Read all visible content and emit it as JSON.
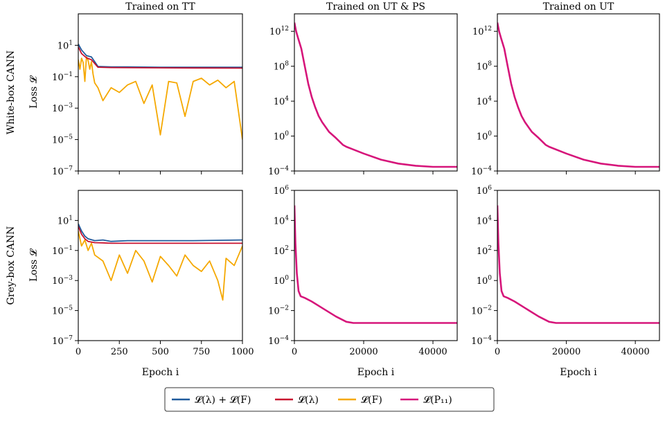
{
  "figure": {
    "columns": [
      {
        "title": "Trained on TT"
      },
      {
        "title": "Trained on UT & PS"
      },
      {
        "title": "Trained on UT"
      }
    ],
    "rows": [
      {
        "label": "White-box CANN",
        "ylabel": "Loss 𝓛"
      },
      {
        "label": "Grey-box CANN",
        "ylabel": "Loss 𝓛"
      }
    ],
    "xlabel": "Epoch i",
    "legend": {
      "placement": "bottom-center",
      "entries": [
        {
          "key": "total",
          "label": "𝓛(λ) + 𝓛(F)",
          "color": "#1f5a9c"
        },
        {
          "key": "lambda",
          "label": "𝓛(λ)",
          "color": "#c8102e"
        },
        {
          "key": "F",
          "label": "𝓛(F)",
          "color": "#f5a800"
        },
        {
          "key": "P11",
          "label": "𝓛(P₁₁)",
          "color": "#d6157a"
        }
      ]
    }
  },
  "chart_data": [
    {
      "id": "wb_tt",
      "type": "line",
      "yscale": "log",
      "xlim": [
        0,
        1000
      ],
      "ylim": [
        1e-07,
        1000
      ],
      "xticks": [
        0,
        250,
        500,
        750,
        1000
      ],
      "yticks": [
        {
          "base": "10",
          "exp": "1"
        },
        {
          "base": "10",
          "exp": "−1"
        },
        {
          "base": "10",
          "exp": "−3"
        },
        {
          "base": "10",
          "exp": "−5"
        },
        {
          "base": "10",
          "exp": "−7"
        }
      ],
      "show_xticklabels": false,
      "series": [
        {
          "name": "𝓛(λ) + 𝓛(F)",
          "color_key": "total",
          "x": [
            0,
            20,
            50,
            80,
            120,
            200,
            300,
            500,
            700,
            1000
          ],
          "y": [
            12,
            5,
            2.2,
            1.8,
            0.45,
            0.42,
            0.42,
            0.4,
            0.4,
            0.4
          ]
        },
        {
          "name": "𝓛(λ)",
          "color_key": "lambda",
          "x": [
            0,
            20,
            50,
            80,
            120,
            200,
            400,
            700,
            1000
          ],
          "y": [
            8,
            3,
            1.6,
            1.2,
            0.4,
            0.38,
            0.37,
            0.36,
            0.35
          ]
        },
        {
          "name": "𝓛(F)",
          "color_key": "F",
          "x": [
            0,
            10,
            20,
            30,
            40,
            50,
            60,
            70,
            80,
            90,
            100,
            120,
            150,
            200,
            250,
            300,
            350,
            400,
            450,
            500,
            550,
            600,
            650,
            700,
            750,
            800,
            850,
            900,
            950,
            1000
          ],
          "y": [
            1.2,
            0.3,
            1.5,
            0.8,
            0.05,
            1.8,
            1.1,
            0.3,
            0.9,
            0.15,
            0.04,
            0.02,
            0.003,
            0.02,
            0.01,
            0.03,
            0.05,
            0.002,
            0.03,
            2e-05,
            0.05,
            0.04,
            0.0003,
            0.05,
            0.08,
            0.03,
            0.06,
            0.02,
            0.05,
            1e-05
          ]
        }
      ]
    },
    {
      "id": "wb_utps",
      "type": "line",
      "yscale": "log",
      "xlim": [
        0,
        47000
      ],
      "ylim": [
        0.0001,
        100000000000000.0
      ],
      "xticks": [
        0,
        20000,
        40000
      ],
      "yticks": [
        {
          "base": "10",
          "exp": "12"
        },
        {
          "base": "10",
          "exp": "8"
        },
        {
          "base": "10",
          "exp": "4"
        },
        {
          "base": "10",
          "exp": "0"
        },
        {
          "base": "10",
          "exp": "−4"
        }
      ],
      "show_xticklabels": false,
      "series": [
        {
          "name": "𝓛(P₁₁)",
          "color_key": "P11",
          "x": [
            0,
            500,
            1000,
            2000,
            3000,
            4000,
            5000,
            6000,
            7000,
            8000,
            10000,
            12000,
            14000,
            15000,
            20000,
            25000,
            30000,
            35000,
            40000,
            47000
          ],
          "y": [
            10000000000000.0,
            1000000000000.0,
            200000000000.0,
            10000000000.0,
            100000000.0,
            1000000.0,
            30000.0,
            2000,
            200,
            40,
            3,
            0.6,
            0.1,
            0.06,
            0.01,
            0.002,
            0.0007,
            0.0004,
            0.0003,
            0.0003
          ]
        }
      ]
    },
    {
      "id": "wb_ut",
      "type": "line",
      "yscale": "log",
      "xlim": [
        0,
        47000
      ],
      "ylim": [
        0.0001,
        100000000000000.0
      ],
      "xticks": [
        0,
        20000,
        40000
      ],
      "yticks": [
        {
          "base": "10",
          "exp": "12"
        },
        {
          "base": "10",
          "exp": "8"
        },
        {
          "base": "10",
          "exp": "4"
        },
        {
          "base": "10",
          "exp": "0"
        },
        {
          "base": "10",
          "exp": "−4"
        }
      ],
      "show_xticklabels": false,
      "series": [
        {
          "name": "𝓛(P₁₁)",
          "color_key": "P11",
          "x": [
            0,
            500,
            1000,
            2000,
            3000,
            4000,
            5000,
            6000,
            7000,
            8000,
            10000,
            12000,
            14000,
            15000,
            20000,
            25000,
            30000,
            35000,
            40000,
            47000
          ],
          "y": [
            10000000000000.0,
            1000000000000.0,
            200000000000.0,
            10000000000.0,
            100000000.0,
            1000000.0,
            30000.0,
            2000,
            200,
            40,
            3,
            0.6,
            0.1,
            0.06,
            0.01,
            0.002,
            0.0007,
            0.0004,
            0.0003,
            0.0003
          ]
        }
      ]
    },
    {
      "id": "gb_tt",
      "type": "line",
      "yscale": "log",
      "xlim": [
        0,
        1000
      ],
      "ylim": [
        1e-07,
        1000
      ],
      "xticks": [
        0,
        250,
        500,
        750,
        1000
      ],
      "yticks": [
        {
          "base": "10",
          "exp": "1"
        },
        {
          "base": "10",
          "exp": "−1"
        },
        {
          "base": "10",
          "exp": "−3"
        },
        {
          "base": "10",
          "exp": "−5"
        },
        {
          "base": "10",
          "exp": "−7"
        }
      ],
      "show_xticklabels": true,
      "series": [
        {
          "name": "𝓛(λ) + 𝓛(F)",
          "color_key": "total",
          "x": [
            0,
            20,
            40,
            60,
            100,
            150,
            200,
            300,
            500,
            700,
            1000
          ],
          "y": [
            6,
            2,
            0.9,
            0.6,
            0.45,
            0.5,
            0.4,
            0.45,
            0.45,
            0.45,
            0.5
          ]
        },
        {
          "name": "𝓛(λ)",
          "color_key": "lambda",
          "x": [
            0,
            20,
            40,
            60,
            100,
            150,
            200,
            400,
            700,
            1000
          ],
          "y": [
            4,
            1.2,
            0.6,
            0.4,
            0.33,
            0.32,
            0.3,
            0.3,
            0.3,
            0.3
          ]
        },
        {
          "name": "𝓛(F)",
          "color_key": "F",
          "x": [
            0,
            20,
            40,
            60,
            80,
            100,
            150,
            200,
            250,
            300,
            350,
            400,
            450,
            500,
            550,
            600,
            650,
            700,
            750,
            800,
            850,
            880,
            900,
            950,
            1000
          ],
          "y": [
            2,
            0.2,
            0.5,
            0.1,
            0.3,
            0.05,
            0.02,
            0.001,
            0.05,
            0.003,
            0.1,
            0.02,
            0.0008,
            0.04,
            0.01,
            0.002,
            0.05,
            0.01,
            0.004,
            0.02,
            0.001,
            5e-05,
            0.03,
            0.01,
            0.2
          ]
        }
      ]
    },
    {
      "id": "gb_utps",
      "type": "line",
      "yscale": "log",
      "xlim": [
        0,
        47000
      ],
      "ylim": [
        0.0001,
        1000000.0
      ],
      "xticks": [
        0,
        20000,
        40000
      ],
      "yticks": [
        {
          "base": "10",
          "exp": "6"
        },
        {
          "base": "10",
          "exp": "4"
        },
        {
          "base": "10",
          "exp": "2"
        },
        {
          "base": "10",
          "exp": "0"
        },
        {
          "base": "10",
          "exp": "−2"
        },
        {
          "base": "10",
          "exp": "−4"
        }
      ],
      "show_xticklabels": true,
      "series": [
        {
          "name": "𝓛(P₁₁)",
          "color_key": "P11",
          "x": [
            0,
            300,
            700,
            1200,
            1800,
            3000,
            5000,
            8000,
            12000,
            15000,
            17000,
            20000,
            30000,
            40000,
            47000
          ],
          "y": [
            100000,
            300,
            3,
            0.2,
            0.09,
            0.07,
            0.04,
            0.015,
            0.004,
            0.0018,
            0.0015,
            0.0015,
            0.0015,
            0.0015,
            0.0015
          ]
        }
      ]
    },
    {
      "id": "gb_ut",
      "type": "line",
      "yscale": "log",
      "xlim": [
        0,
        47000
      ],
      "ylim": [
        0.0001,
        1000000.0
      ],
      "xticks": [
        0,
        20000,
        40000
      ],
      "yticks": [
        {
          "base": "10",
          "exp": "6"
        },
        {
          "base": "10",
          "exp": "4"
        },
        {
          "base": "10",
          "exp": "2"
        },
        {
          "base": "10",
          "exp": "0"
        },
        {
          "base": "10",
          "exp": "−2"
        },
        {
          "base": "10",
          "exp": "−4"
        }
      ],
      "show_xticklabels": true,
      "series": [
        {
          "name": "𝓛(P₁₁)",
          "color_key": "P11",
          "x": [
            0,
            300,
            700,
            1200,
            1800,
            3000,
            5000,
            8000,
            12000,
            15000,
            17000,
            20000,
            30000,
            40000,
            47000
          ],
          "y": [
            100000,
            300,
            3,
            0.2,
            0.09,
            0.07,
            0.04,
            0.015,
            0.004,
            0.0018,
            0.0015,
            0.0015,
            0.0015,
            0.0015,
            0.0015
          ]
        }
      ]
    }
  ]
}
